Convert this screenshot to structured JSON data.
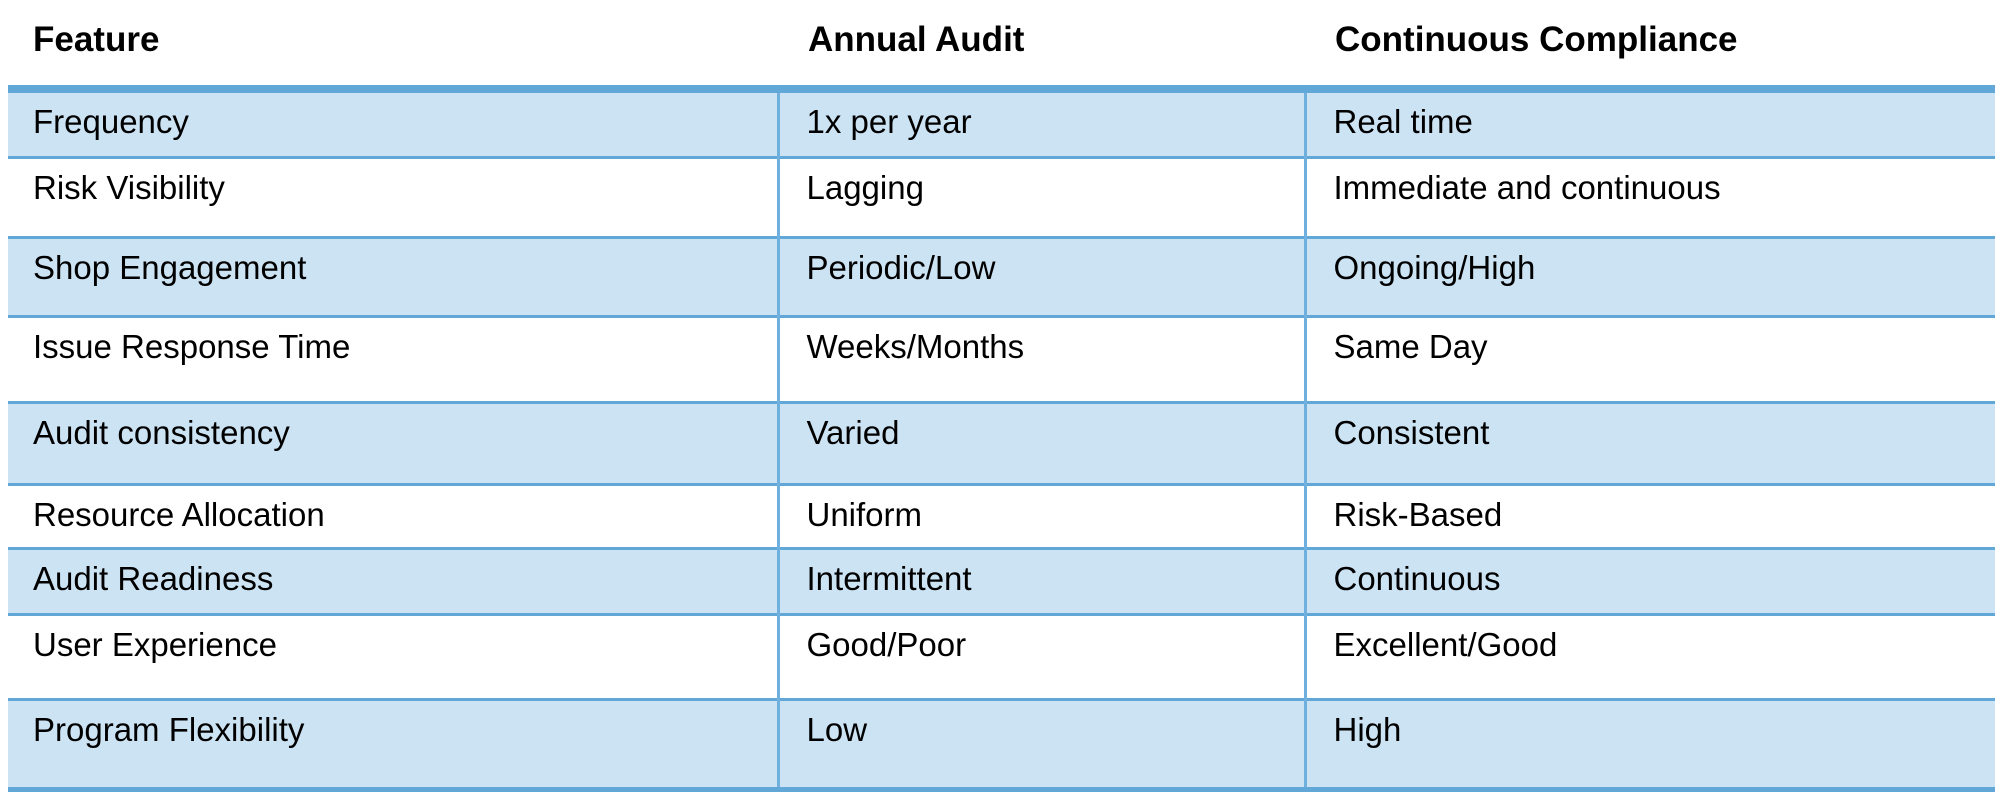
{
  "table": {
    "columns": [
      "Feature",
      "Annual Audit",
      "Continuous Compliance"
    ],
    "rows": [
      {
        "feature": "Frequency",
        "annual_audit": "1x per year",
        "continuous_compliance": "Real time"
      },
      {
        "feature": "Risk Visibility",
        "annual_audit": "Lagging",
        "continuous_compliance": "Immediate and continuous"
      },
      {
        "feature": "Shop Engagement",
        "annual_audit": "Periodic/Low",
        "continuous_compliance": "Ongoing/High"
      },
      {
        "feature": "Issue Response Time",
        "annual_audit": "Weeks/Months",
        "continuous_compliance": "Same Day"
      },
      {
        "feature": "Audit consistency",
        "annual_audit": "Varied",
        "continuous_compliance": "Consistent"
      },
      {
        "feature": "Resource Allocation",
        "annual_audit": "Uniform",
        "continuous_compliance": "Risk-Based"
      },
      {
        "feature": "Audit Readiness",
        "annual_audit": "Intermittent",
        "continuous_compliance": "Continuous"
      },
      {
        "feature": "User Experience",
        "annual_audit": "Good/Poor",
        "continuous_compliance": "Excellent/Good"
      },
      {
        "feature": "Program Flexibility",
        "annual_audit": "Low",
        "continuous_compliance": "High"
      }
    ]
  },
  "colors": {
    "row_band": "#cce3f4",
    "horizontal_border": "#61a8d8",
    "vertical_divider": "#6fb0de",
    "text": "#000000",
    "background": "#ffffff"
  }
}
